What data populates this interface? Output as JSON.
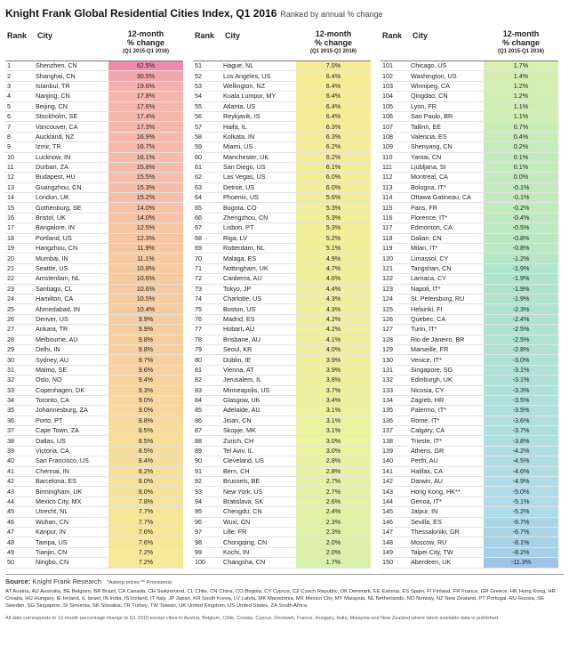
{
  "header": {
    "title": "Knight Frank Global Residential Cities Index, Q1 2016",
    "subtitle": "Ranked by annual % change"
  },
  "column_headers": {
    "rank": "Rank",
    "city": "City",
    "change_line1": "12-month",
    "change_line2": "% change",
    "period": "(Q1 2015-Q1 2016)"
  },
  "table": [
    [
      {
        "rank": "1",
        "city": "Shenzhen, CN",
        "change": "62.5%"
      },
      {
        "rank": "2",
        "city": "Shanghai, CN",
        "change": "30.5%"
      },
      {
        "rank": "3",
        "city": "Istanbul, TR",
        "change": "19.6%"
      },
      {
        "rank": "4",
        "city": "Nanjing, CN",
        "change": "17.8%"
      },
      {
        "rank": "5",
        "city": "Beijing, CN",
        "change": "17.6%"
      },
      {
        "rank": "6",
        "city": "Stockholm, SE",
        "change": "17.4%"
      },
      {
        "rank": "7",
        "city": "Vancouver, CA",
        "change": "17.3%"
      },
      {
        "rank": "8",
        "city": "Auckland, NZ",
        "change": "16.9%"
      },
      {
        "rank": "9",
        "city": "Izmir, TR",
        "change": "16.7%"
      },
      {
        "rank": "10",
        "city": "Lucknow, IN",
        "change": "16.1%"
      },
      {
        "rank": "11",
        "city": "Durban, ZA",
        "change": "15.8%"
      },
      {
        "rank": "12",
        "city": "Budapest, HU",
        "change": "15.5%"
      },
      {
        "rank": "13",
        "city": "Guangzhou, CN",
        "change": "15.3%"
      },
      {
        "rank": "14",
        "city": "London, UK",
        "change": "15.2%"
      },
      {
        "rank": "15",
        "city": "Gothenburg, SE",
        "change": "14.0%"
      },
      {
        "rank": "16",
        "city": "Bristol, UK",
        "change": "14.0%"
      },
      {
        "rank": "17",
        "city": "Bangalore, IN",
        "change": "12.5%"
      },
      {
        "rank": "18",
        "city": "Portland, US",
        "change": "12.3%"
      },
      {
        "rank": "19",
        "city": "Hangzhou, CN",
        "change": "11.9%"
      },
      {
        "rank": "20",
        "city": "Mumbai, IN",
        "change": "11.1%"
      },
      {
        "rank": "21",
        "city": "Seattle, US",
        "change": "10.8%"
      },
      {
        "rank": "22",
        "city": "Amsterdam, NL",
        "change": "10.6%"
      },
      {
        "rank": "23",
        "city": "Santiago, CL",
        "change": "10.6%"
      },
      {
        "rank": "24",
        "city": "Hamilton, CA",
        "change": "10.5%"
      },
      {
        "rank": "25",
        "city": "Ahmedabad, IN",
        "change": "10.4%"
      },
      {
        "rank": "26",
        "city": "Denver, US",
        "change": "9.9%"
      },
      {
        "rank": "27",
        "city": "Ankara, TR",
        "change": "9.9%"
      },
      {
        "rank": "28",
        "city": "Melbourne, AU",
        "change": "9.8%"
      },
      {
        "rank": "29",
        "city": "Delhi, IN",
        "change": "9.8%"
      },
      {
        "rank": "30",
        "city": "Sydney, AU",
        "change": "9.7%"
      },
      {
        "rank": "31",
        "city": "Malmo, SE",
        "change": "9.6%"
      },
      {
        "rank": "32",
        "city": "Oslo, NO",
        "change": "9.4%"
      },
      {
        "rank": "33",
        "city": "Copenhagen, DK",
        "change": "9.3%"
      },
      {
        "rank": "34",
        "city": "Toronto, CA",
        "change": "9.0%"
      },
      {
        "rank": "35",
        "city": "Johannesburg, ZA",
        "change": "9.0%"
      },
      {
        "rank": "36",
        "city": "Porto, PT",
        "change": "8.8%"
      },
      {
        "rank": "37",
        "city": "Cape Town, ZA",
        "change": "8.5%"
      },
      {
        "rank": "38",
        "city": "Dallas, US",
        "change": "8.5%"
      },
      {
        "rank": "39",
        "city": "Victoria, CA",
        "change": "8.5%"
      },
      {
        "rank": "40",
        "city": "San Francisco, US",
        "change": "8.4%"
      },
      {
        "rank": "41",
        "city": "Chennai, IN",
        "change": "8.2%"
      },
      {
        "rank": "42",
        "city": "Barcelona, ES",
        "change": "8.0%"
      },
      {
        "rank": "43",
        "city": "Birmingham, UK",
        "change": "8.0%"
      },
      {
        "rank": "44",
        "city": "Mexico City, MX",
        "change": "7.8%"
      },
      {
        "rank": "45",
        "city": "Utrecht, NL",
        "change": "7.7%"
      },
      {
        "rank": "46",
        "city": "Wuhan, CN",
        "change": "7.7%"
      },
      {
        "rank": "47",
        "city": "Kanpur, IN",
        "change": "7.6%"
      },
      {
        "rank": "48",
        "city": "Tampa, US",
        "change": "7.6%"
      },
      {
        "rank": "49",
        "city": "Tianjin, CN",
        "change": "7.2%"
      },
      {
        "rank": "50",
        "city": "Ningbo, CN",
        "change": "7.2%"
      }
    ],
    [
      {
        "rank": "51",
        "city": "Hague, NL",
        "change": "7.0%"
      },
      {
        "rank": "52",
        "city": "Los Angeles, US",
        "change": "6.4%"
      },
      {
        "rank": "53",
        "city": "Wellington, NZ",
        "change": "6.4%"
      },
      {
        "rank": "54",
        "city": "Kuala Lumpur, MY",
        "change": "6.4%"
      },
      {
        "rank": "55",
        "city": "Atlanta, US",
        "change": "6.4%"
      },
      {
        "rank": "56",
        "city": "Reykjavik, IS",
        "change": "6.4%"
      },
      {
        "rank": "57",
        "city": "Haifa, IL",
        "change": "6.3%"
      },
      {
        "rank": "58",
        "city": "Kolkata, IN",
        "change": "6.3%"
      },
      {
        "rank": "59",
        "city": "Miami, US",
        "change": "6.2%"
      },
      {
        "rank": "60",
        "city": "Manchester, UK",
        "change": "6.2%"
      },
      {
        "rank": "61",
        "city": "San Diego, US",
        "change": "6.1%"
      },
      {
        "rank": "62",
        "city": "Las Vegas, US",
        "change": "6.0%"
      },
      {
        "rank": "63",
        "city": "Detroit, US",
        "change": "6.0%"
      },
      {
        "rank": "64",
        "city": "Phoenix, US",
        "change": "5.6%"
      },
      {
        "rank": "65",
        "city": "Bogota, CO",
        "change": "5.3%"
      },
      {
        "rank": "66",
        "city": "Zhengzhou, CN",
        "change": "5.3%"
      },
      {
        "rank": "67",
        "city": "Lisbon, PT",
        "change": "5.3%"
      },
      {
        "rank": "68",
        "city": "Riga, LV",
        "change": "5.2%"
      },
      {
        "rank": "69",
        "city": "Rotterdam, NL",
        "change": "5.1%"
      },
      {
        "rank": "70",
        "city": "Malaga, ES",
        "change": "4.9%"
      },
      {
        "rank": "71",
        "city": "Nottingham, UK",
        "change": "4.7%"
      },
      {
        "rank": "72",
        "city": "Canberra, AU",
        "change": "4.6%"
      },
      {
        "rank": "73",
        "city": "Tokyo, JP",
        "change": "4.4%"
      },
      {
        "rank": "74",
        "city": "Charlotte, US",
        "change": "4.3%"
      },
      {
        "rank": "75",
        "city": "Boston, US",
        "change": "4.3%"
      },
      {
        "rank": "76",
        "city": "Madrid, ES",
        "change": "4.2%"
      },
      {
        "rank": "77",
        "city": "Hobart, AU",
        "change": "4.2%"
      },
      {
        "rank": "78",
        "city": "Brisbane, AU",
        "change": "4.1%"
      },
      {
        "rank": "79",
        "city": "Seoul, KR",
        "change": "4.0%"
      },
      {
        "rank": "80",
        "city": "Dublin, IE",
        "change": "3.9%"
      },
      {
        "rank": "81",
        "city": "Vienna, AT",
        "change": "3.9%"
      },
      {
        "rank": "82",
        "city": "Jerusalem, IL",
        "change": "3.8%"
      },
      {
        "rank": "83",
        "city": "Minneapolis, US",
        "change": "3.7%"
      },
      {
        "rank": "84",
        "city": "Glasgow, UK",
        "change": "3.4%"
      },
      {
        "rank": "85",
        "city": "Adelaide, AU",
        "change": "3.1%"
      },
      {
        "rank": "86",
        "city": "Jinan, CN",
        "change": "3.1%"
      },
      {
        "rank": "87",
        "city": "Skopje, MK",
        "change": "3.1%"
      },
      {
        "rank": "88",
        "city": "Zurich, CH",
        "change": "3.0%"
      },
      {
        "rank": "89",
        "city": "Tel Aviv, IL",
        "change": "3.0%"
      },
      {
        "rank": "90",
        "city": "Cleveland, US",
        "change": "2.8%"
      },
      {
        "rank": "91",
        "city": "Bern, CH",
        "change": "2.8%"
      },
      {
        "rank": "92",
        "city": "Brussels, BE",
        "change": "2.7%"
      },
      {
        "rank": "93",
        "city": "New York, US",
        "change": "2.7%"
      },
      {
        "rank": "94",
        "city": "Bratislava, SK",
        "change": "2.6%"
      },
      {
        "rank": "95",
        "city": "Chengdu, CN",
        "change": "2.4%"
      },
      {
        "rank": "96",
        "city": "Wuxi, CN",
        "change": "2.3%"
      },
      {
        "rank": "97",
        "city": "Lille, FR",
        "change": "2.3%"
      },
      {
        "rank": "98",
        "city": "Chongqing, CN",
        "change": "2.0%"
      },
      {
        "rank": "99",
        "city": "Kochi, IN",
        "change": "2.0%"
      },
      {
        "rank": "100",
        "city": "Changsha, CN",
        "change": "1.7%"
      }
    ],
    [
      {
        "rank": "101",
        "city": "Chicago, US",
        "change": "1.7%"
      },
      {
        "rank": "102",
        "city": "Washington, US",
        "change": "1.4%"
      },
      {
        "rank": "103",
        "city": "Winnipeg, CA",
        "change": "1.2%"
      },
      {
        "rank": "104",
        "city": "Qingdao, CN",
        "change": "1.2%"
      },
      {
        "rank": "105",
        "city": "Lyon, FR",
        "change": "1.1%"
      },
      {
        "rank": "106",
        "city": "Sao Paulo, BR",
        "change": "1.1%"
      },
      {
        "rank": "107",
        "city": "Tallinn, EE",
        "change": "0.7%"
      },
      {
        "rank": "108",
        "city": "Valencia, ES",
        "change": "0.4%"
      },
      {
        "rank": "109",
        "city": "Shenyang, CN",
        "change": "0.2%"
      },
      {
        "rank": "110",
        "city": "Yantai, CN",
        "change": "0.1%"
      },
      {
        "rank": "111",
        "city": "Ljubljana, SI",
        "change": "0.1%"
      },
      {
        "rank": "112",
        "city": "Montreal, CA",
        "change": "0.0%"
      },
      {
        "rank": "113",
        "city": "Bologna, IT*",
        "change": "-0.1%"
      },
      {
        "rank": "114",
        "city": "Ottawa Gatineau, CA",
        "change": "-0.1%"
      },
      {
        "rank": "115",
        "city": "Paris, FR",
        "change": "-0.2%"
      },
      {
        "rank": "116",
        "city": "Florence, IT*",
        "change": "-0.4%"
      },
      {
        "rank": "117",
        "city": "Edmonton, CA",
        "change": "-0.5%"
      },
      {
        "rank": "118",
        "city": "Dalian, CN",
        "change": "-0.8%"
      },
      {
        "rank": "119",
        "city": "Milan, IT*",
        "change": "-0.8%"
      },
      {
        "rank": "120",
        "city": "Limassol, CY",
        "change": "-1.2%"
      },
      {
        "rank": "121",
        "city": "Tangshan, CN",
        "change": "-1.9%"
      },
      {
        "rank": "122",
        "city": "Larnaca, CY",
        "change": "-1.9%"
      },
      {
        "rank": "123",
        "city": "Napoli, IT*",
        "change": "-1.9%"
      },
      {
        "rank": "124",
        "city": "St. Petersburg, RU",
        "change": "-1.9%"
      },
      {
        "rank": "125",
        "city": "Helsinki, FI",
        "change": "-2.3%"
      },
      {
        "rank": "126",
        "city": "Quebec, CA",
        "change": "-2.4%"
      },
      {
        "rank": "127",
        "city": "Turin, IT*",
        "change": "-2.5%"
      },
      {
        "rank": "128",
        "city": "Rio de Janeiro, BR",
        "change": "-2.5%"
      },
      {
        "rank": "129",
        "city": "Marseille, FR",
        "change": "-2.8%"
      },
      {
        "rank": "130",
        "city": "Venice, IT*",
        "change": "-3.0%"
      },
      {
        "rank": "131",
        "city": "Singapore, SG",
        "change": "-3.1%"
      },
      {
        "rank": "132",
        "city": "Edinburgh, UK",
        "change": "-3.1%"
      },
      {
        "rank": "133",
        "city": "Nicosia, CY",
        "change": "-3.3%"
      },
      {
        "rank": "134",
        "city": "Zagreb, HR",
        "change": "-3.5%"
      },
      {
        "rank": "135",
        "city": "Palermo, IT*",
        "change": "-3.5%"
      },
      {
        "rank": "136",
        "city": "Rome, IT*",
        "change": "-3.6%"
      },
      {
        "rank": "137",
        "city": "Calgary, CA",
        "change": "-3.7%"
      },
      {
        "rank": "138",
        "city": "Trieste, IT*",
        "change": "-3.8%"
      },
      {
        "rank": "139",
        "city": "Athens, GR",
        "change": "-4.2%"
      },
      {
        "rank": "140",
        "city": "Perth, AU",
        "change": "-4.5%"
      },
      {
        "rank": "141",
        "city": "Halifax, CA",
        "change": "-4.6%"
      },
      {
        "rank": "142",
        "city": "Darwin, AU",
        "change": "-4.9%"
      },
      {
        "rank": "143",
        "city": "Hong Kong, HK**",
        "change": "-5.0%"
      },
      {
        "rank": "144",
        "city": "Genoa, IT*",
        "change": "-5.1%"
      },
      {
        "rank": "145",
        "city": "Jaipur, IN",
        "change": "-5.2%"
      },
      {
        "rank": "146",
        "city": "Sevilla, ES",
        "change": "-6.7%"
      },
      {
        "rank": "147",
        "city": "Thessaloniki, GR",
        "change": "-6.7%"
      },
      {
        "rank": "148",
        "city": "Moscow, RU",
        "change": "-8.1%"
      },
      {
        "rank": "149",
        "city": "Taipei City, TW",
        "change": "-8.2%"
      },
      {
        "rank": "150",
        "city": "Aberdeen, UK",
        "change": "-11.3%"
      }
    ]
  ],
  "footer": {
    "source_label": "Source:",
    "source_text": "Knight Frank Research",
    "notes": "*Asking prices ** Provisional",
    "abbreviations": "AT Austria, AU Australia, BE Belgium, BR Brazil, CA Canada, CH Switzerland, CL Chile, CN China, CO Bogota, CY Cyprus, CZ Czech Republic, DK Denmark, EE Estonia, ES Spain, FI Finland, FR France, GR Greece, HK Hong Kong, HR Croatia, HU Hungary, IE Ireland, IL Israel, IN India, IS Iceland, IT Italy, JP Japan, KR South Korea, LV Latvia, MK Macedonia, MX Mexico City, MY Malaysia, NL Netherlands, NO Norway, NZ New Zealand, PT Portugal, RU Russia, SE Sweden, SG Singapore, SI Slovenia, SK Slovakia, TR Turkey, TW Taiwan, UK United Kingdom, US United States, ZA South Africa",
    "disclaimer": "All data corresponds to 12-month percentage change to Q1 2016 except cities in Austria, Belgium, Chile, Croatia, Cyprus, Denmark, France, Hungary, India, Malaysia and New Zealand where latest available data is published."
  }
}
